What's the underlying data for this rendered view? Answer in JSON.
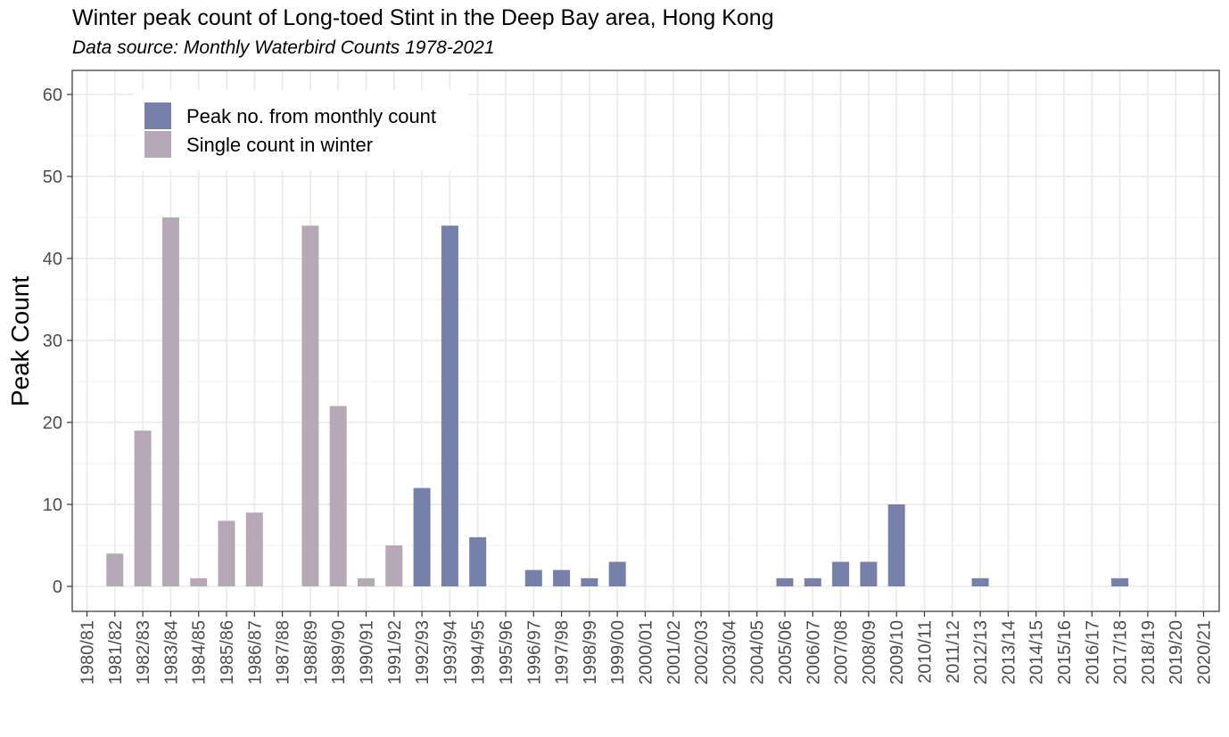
{
  "chart_data": {
    "type": "bar",
    "title": "Winter peak count of Long-toed Stint in the Deep Bay area, Hong Kong",
    "subtitle": "Data source: Monthly Waterbird Counts 1978-2021",
    "xlabel": "",
    "ylabel": "Peak Count",
    "ylim": [
      0,
      60
    ],
    "yticks": [
      0,
      10,
      20,
      30,
      40,
      50,
      60
    ],
    "grid": true,
    "legend_position": "top-left",
    "categories": [
      "1980/81",
      "1981/82",
      "1982/83",
      "1983/84",
      "1984/85",
      "1985/86",
      "1986/87",
      "1987/88",
      "1988/89",
      "1989/90",
      "1990/91",
      "1991/92",
      "1992/93",
      "1993/94",
      "1994/95",
      "1995/96",
      "1996/97",
      "1997/98",
      "1998/99",
      "1999/00",
      "2000/01",
      "2001/02",
      "2002/03",
      "2003/04",
      "2004/05",
      "2005/06",
      "2006/07",
      "2007/08",
      "2008/09",
      "2009/10",
      "2010/11",
      "2011/12",
      "2012/13",
      "2013/14",
      "2014/15",
      "2015/16",
      "2016/17",
      "2017/18",
      "2018/19",
      "2019/20",
      "2020/21"
    ],
    "series": [
      {
        "name": "Peak no. from monthly count",
        "color": "#7680a8",
        "values": [
          null,
          null,
          null,
          null,
          null,
          null,
          null,
          null,
          null,
          null,
          null,
          null,
          12,
          44,
          6,
          null,
          2,
          2,
          1,
          3,
          null,
          null,
          null,
          null,
          null,
          1,
          1,
          3,
          3,
          10,
          null,
          null,
          1,
          null,
          null,
          null,
          null,
          1,
          null,
          null,
          null
        ]
      },
      {
        "name": "Single count in winter",
        "color": "#b7a8b7",
        "values": [
          null,
          4,
          19,
          45,
          1,
          8,
          9,
          null,
          44,
          22,
          1,
          5,
          null,
          null,
          null,
          null,
          null,
          null,
          null,
          null,
          null,
          null,
          null,
          null,
          null,
          null,
          null,
          null,
          null,
          null,
          null,
          null,
          null,
          null,
          null,
          null,
          null,
          null,
          null,
          null,
          null
        ]
      }
    ]
  }
}
